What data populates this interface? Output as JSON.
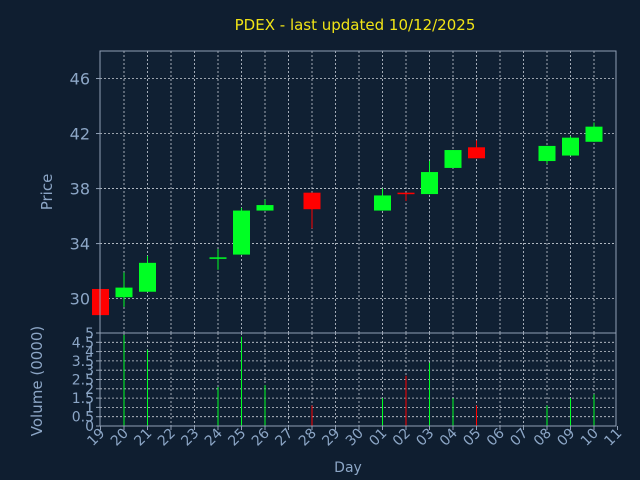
{
  "colors": {
    "background": "#0f1e30",
    "plot_area": "#102033",
    "frame": "#8f9fb5",
    "grid": "#c7cdd6",
    "title": "#f1e416",
    "label": "#8ca6c6",
    "up": "#00ff24",
    "down": "#ff0000"
  },
  "chart_data": {
    "type": "candlestick",
    "title": "PDEX - last updated 10/12/2025",
    "xlabel": "Day",
    "ylabel": "Price",
    "volume_ylabel": "Volume (0000)",
    "grid": true,
    "price_ylim": [
      27.5,
      48
    ],
    "price_yticks": [
      "46",
      "42",
      "38",
      "34",
      "30"
    ],
    "volume_ylim": [
      0,
      5
    ],
    "volume_yticks": [
      "0",
      "0.5",
      "1",
      "1.5",
      "2",
      "2.5",
      "3",
      "3.5",
      "4",
      "4.5",
      "5"
    ],
    "x_tick_labels": [
      "19",
      "20",
      "21",
      "22",
      "23",
      "24",
      "25",
      "26",
      "27",
      "28",
      "29",
      "30",
      "01",
      "02",
      "03",
      "04",
      "05",
      "06",
      "07",
      "08",
      "09",
      "10",
      "11"
    ],
    "candles": [
      {
        "day": "19",
        "open": 30.7,
        "high": 30.7,
        "low": 28.8,
        "close": 28.8,
        "volume": 0.0
      },
      {
        "day": "20",
        "open": 30.1,
        "high": 31.9,
        "low": 29.4,
        "close": 30.8,
        "volume": 4.9
      },
      {
        "day": "21",
        "open": 30.5,
        "high": 33.1,
        "low": 30.5,
        "close": 32.6,
        "volume": 4.1
      },
      {
        "day": "24",
        "open": 32.9,
        "high": 33.6,
        "low": 32.1,
        "close": 33.0,
        "volume": 2.1
      },
      {
        "day": "25",
        "open": 33.2,
        "high": 36.6,
        "low": 33.2,
        "close": 36.4,
        "volume": 4.8
      },
      {
        "day": "26",
        "open": 36.4,
        "high": 37.2,
        "low": 36.4,
        "close": 36.8,
        "volume": 2.2
      },
      {
        "day": "28",
        "open": 37.7,
        "high": 37.7,
        "low": 35.1,
        "close": 36.5,
        "volume": 1.1
      },
      {
        "day": "01",
        "open": 36.4,
        "high": 38.0,
        "low": 36.4,
        "close": 37.5,
        "volume": 1.5
      },
      {
        "day": "02",
        "open": 37.7,
        "high": 37.7,
        "low": 37.1,
        "close": 37.6,
        "volume": 2.7
      },
      {
        "day": "03",
        "open": 37.6,
        "high": 40.0,
        "low": 37.6,
        "close": 39.2,
        "volume": 3.4
      },
      {
        "day": "04",
        "open": 39.5,
        "high": 40.8,
        "low": 39.5,
        "close": 40.8,
        "volume": 1.5
      },
      {
        "day": "05",
        "open": 41.0,
        "high": 41.5,
        "low": 40.2,
        "close": 40.2,
        "volume": 1.1
      },
      {
        "day": "08",
        "open": 40.0,
        "high": 41.1,
        "low": 39.8,
        "close": 41.1,
        "volume": 1.1
      },
      {
        "day": "09",
        "open": 40.4,
        "high": 41.8,
        "low": 40.4,
        "close": 41.7,
        "volume": 1.5
      },
      {
        "day": "10",
        "open": 41.4,
        "high": 42.8,
        "low": 41.4,
        "close": 42.5,
        "volume": 1.7
      }
    ]
  }
}
